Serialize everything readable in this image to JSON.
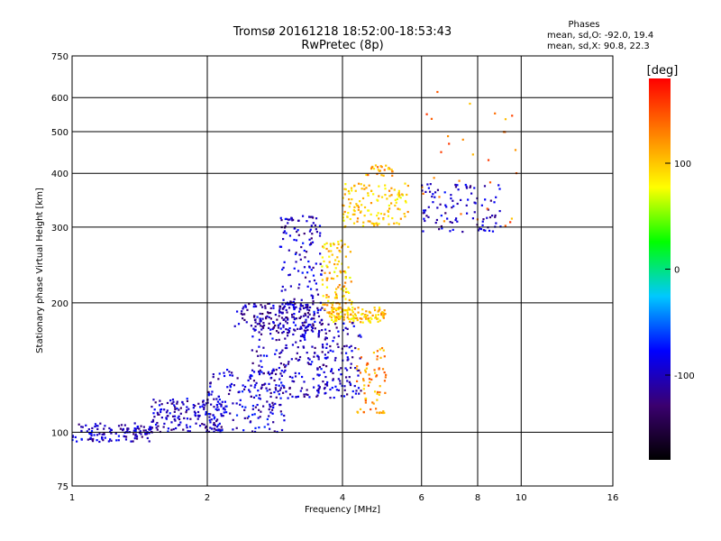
{
  "chart_data": {
    "type": "scatter",
    "title": "Tromsø 20161218 18:52:00-18:53:43",
    "subtitle": "RwPretec (8p)",
    "xlabel": "Frequency [MHz]",
    "ylabel": "Stationary phase Virtual Height [km]",
    "x_scale": "log",
    "y_scale": "log",
    "xlim": [
      1,
      16
    ],
    "ylim": [
      75,
      750
    ],
    "x_ticks": [
      "1",
      "2",
      "4",
      "6",
      "8",
      "10",
      "16"
    ],
    "y_ticks": [
      "75",
      "100",
      "200",
      "300",
      "400",
      "500",
      "600",
      "750"
    ],
    "grid": true,
    "phases_box": {
      "heading": "Phases",
      "line1": "mean, sd,O: -92.0, 19.4",
      "line2": "mean, sd,X:  90.8, 22.3"
    },
    "colorbar": {
      "label": "[deg]",
      "range": [
        -180,
        180
      ],
      "ticks": [
        "100",
        "0",
        "-100"
      ],
      "tick_values": [
        100,
        0,
        -100
      ],
      "colormap": "rainbow",
      "colors": [
        "#000000",
        "#3b0070",
        "#0000ff",
        "#00c8ff",
        "#00ff00",
        "#ffff00",
        "#ff8000",
        "#ff0000"
      ]
    },
    "clusters": [
      {
        "x": [
          1.0,
          1.5
        ],
        "y": [
          95,
          105
        ],
        "phase": -100,
        "n": 120
      },
      {
        "x": [
          1.5,
          2.2
        ],
        "y": [
          100,
          120
        ],
        "phase": -100,
        "n": 160
      },
      {
        "x": [
          2.0,
          3.0
        ],
        "y": [
          100,
          140
        ],
        "phase": -95,
        "n": 160
      },
      {
        "x": [
          2.5,
          3.7
        ],
        "y": [
          120,
          200
        ],
        "phase": -100,
        "n": 240
      },
      {
        "x": [
          2.9,
          3.6
        ],
        "y": [
          170,
          320
        ],
        "phase": -100,
        "n": 150
      },
      {
        "x": [
          2.3,
          3.4
        ],
        "y": [
          170,
          200
        ],
        "phase": -110,
        "n": 110
      },
      {
        "x": [
          3.6,
          4.2
        ],
        "y": [
          185,
          280
        ],
        "phase": 100,
        "n": 120
      },
      {
        "x": [
          3.7,
          5.0
        ],
        "y": [
          180,
          195
        ],
        "phase": 100,
        "n": 120
      },
      {
        "x": [
          3.5,
          4.4
        ],
        "y": [
          120,
          180
        ],
        "phase": -100,
        "n": 120
      },
      {
        "x": [
          4.3,
          5.0
        ],
        "y": [
          110,
          160
        ],
        "phase": 120,
        "n": 70
      },
      {
        "x": [
          4.0,
          5.6
        ],
        "y": [
          300,
          380
        ],
        "phase": 100,
        "n": 130
      },
      {
        "x": [
          4.5,
          5.2
        ],
        "y": [
          395,
          420
        ],
        "phase": 110,
        "n": 25
      },
      {
        "x": [
          6.0,
          9.0
        ],
        "y": [
          290,
          380
        ],
        "phase": -100,
        "n": 100
      },
      {
        "x": [
          6.0,
          10.0
        ],
        "y": [
          300,
          650
        ],
        "phase": 130,
        "n": 30
      }
    ]
  }
}
